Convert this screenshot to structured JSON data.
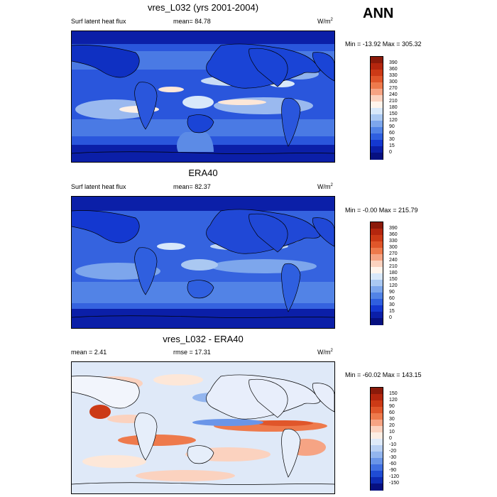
{
  "season": "ANN",
  "panels": [
    {
      "title": "vres_L032 (yrs 2001-2004)",
      "left_label": "Surf latent heat flux",
      "center_label": "mean=  84.78",
      "units": "W/m",
      "units_sup": "2",
      "minmax": "Min = -13.92 Max = 305.32",
      "colorbar_labels": [
        "390",
        "360",
        "330",
        "300",
        "270",
        "240",
        "210",
        "180",
        "150",
        "120",
        "90",
        "60",
        "30",
        "15",
        "0"
      ],
      "colorbar_colors": [
        "#8b1a0a",
        "#b4260e",
        "#cc3a16",
        "#e0562a",
        "#ee7a4c",
        "#f6a484",
        "#fbd2bf",
        "#fff4ec",
        "#d8e8fa",
        "#aac8f2",
        "#7da6ec",
        "#5283e6",
        "#2f5fdf",
        "#1438d0",
        "#0b1fa8",
        "#071080"
      ]
    },
    {
      "title": "ERA40",
      "left_label": "Surf latent heat flux",
      "center_label": "mean=  82.37",
      "units": "W/m",
      "units_sup": "2",
      "minmax": "Min =  -0.00 Max = 215.79",
      "colorbar_labels": [
        "390",
        "360",
        "330",
        "300",
        "270",
        "240",
        "210",
        "180",
        "150",
        "120",
        "90",
        "60",
        "30",
        "15",
        "0"
      ],
      "colorbar_colors": [
        "#8b1a0a",
        "#b4260e",
        "#cc3a16",
        "#e0562a",
        "#ee7a4c",
        "#f6a484",
        "#fbd2bf",
        "#fff4ec",
        "#d8e8fa",
        "#aac8f2",
        "#7da6ec",
        "#5283e6",
        "#2f5fdf",
        "#1438d0",
        "#0b1fa8",
        "#071080"
      ]
    },
    {
      "title": "vres_L032 - ERA40",
      "left_label": "mean =   2.41",
      "center_label": "rmse =  17.31",
      "units": "W/m",
      "units_sup": "2",
      "minmax": "Min = -60.02 Max = 143.15",
      "colorbar_labels": [
        "150",
        "120",
        "90",
        "60",
        "30",
        "20",
        "10",
        "0",
        "-10",
        "-20",
        "-30",
        "-60",
        "-90",
        "-120",
        "-150"
      ],
      "colorbar_colors": [
        "#8b1a0a",
        "#b4260e",
        "#cc3a16",
        "#e0562a",
        "#ee7a4c",
        "#f6a484",
        "#fbd2bf",
        "#fdeee4",
        "#dfeaf9",
        "#b9d0f3",
        "#93b5ee",
        "#6a95e8",
        "#4170e1",
        "#1f4cd4",
        "#0e2cb4",
        "#071080"
      ]
    }
  ],
  "chart_data": [
    {
      "type": "heatmap",
      "title": "vres_L032 (yrs 2001-2004)",
      "variable": "Surf latent heat flux",
      "units": "W/m2",
      "mean": 84.78,
      "min": -13.92,
      "max": 305.32,
      "contour_levels": [
        0,
        15,
        30,
        60,
        90,
        120,
        150,
        180,
        210,
        240,
        270,
        300,
        330,
        360,
        390
      ]
    },
    {
      "type": "heatmap",
      "title": "ERA40",
      "variable": "Surf latent heat flux",
      "units": "W/m2",
      "mean": 82.37,
      "min": -0.0,
      "max": 215.79,
      "contour_levels": [
        0,
        15,
        30,
        60,
        90,
        120,
        150,
        180,
        210,
        240,
        270,
        300,
        330,
        360,
        390
      ]
    },
    {
      "type": "heatmap",
      "title": "vres_L032 - ERA40",
      "units": "W/m2",
      "mean": 2.41,
      "rmse": 17.31,
      "min": -60.02,
      "max": 143.15,
      "contour_levels": [
        -150,
        -120,
        -90,
        -60,
        -30,
        -20,
        -10,
        0,
        10,
        20,
        30,
        60,
        90,
        120,
        150
      ]
    }
  ]
}
